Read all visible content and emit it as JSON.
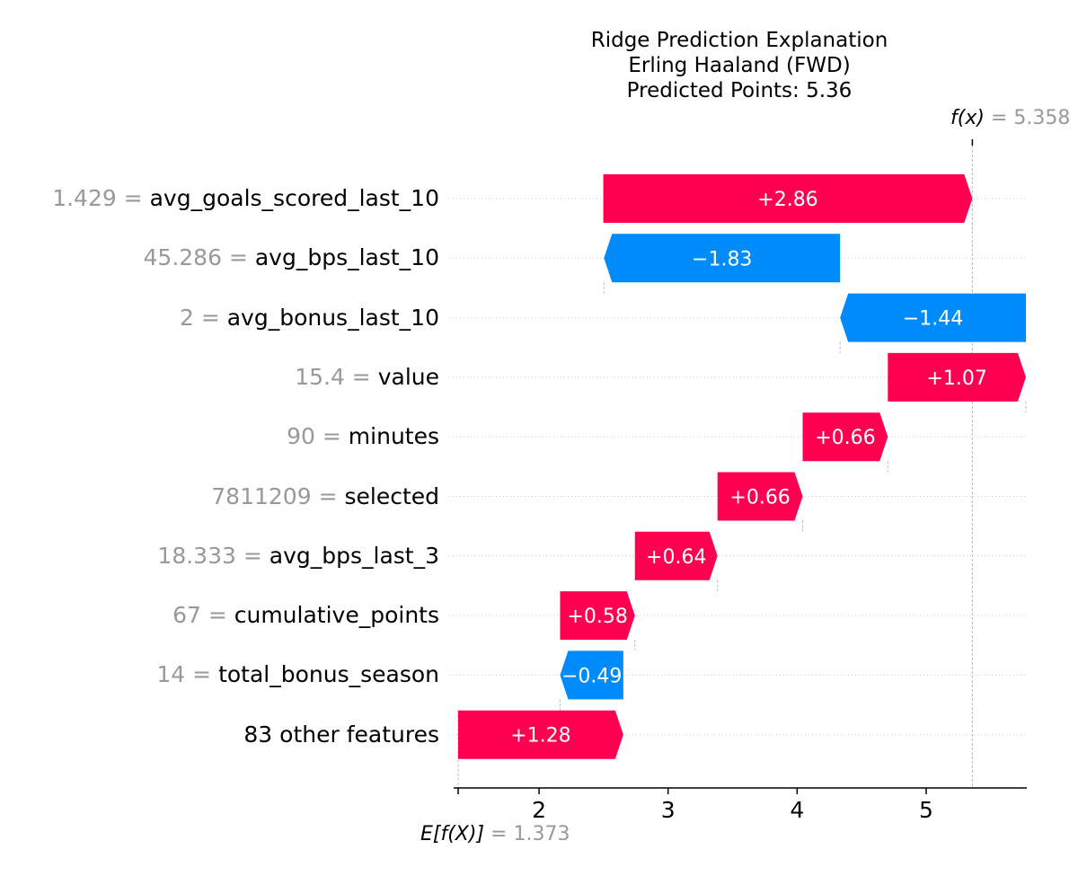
{
  "chart_data": {
    "type": "waterfall",
    "title_lines": [
      "Ridge Prediction Explanation",
      "Erling Haaland (FWD)",
      "Predicted Points: 5.36"
    ],
    "base_value": 1.373,
    "base_label_symbol": "E[f(X)]",
    "base_label_value": "= 1.373",
    "output_value": 5.358,
    "output_label_symbol": "f(x)",
    "output_label_value": "= 5.358",
    "xlim": [
      1.373,
      5.78
    ],
    "xticks": [
      2,
      3,
      4,
      5
    ],
    "xtick_labels": [
      "2",
      "3",
      "4",
      "5"
    ],
    "colors": {
      "positive": "#ff0051",
      "negative": "#008bfb",
      "grid": "#cccccc",
      "value_text": "#999999"
    },
    "features": [
      {
        "value": "1.429",
        "name": "avg_goals_scored_last_10",
        "contribution": 2.86,
        "label": "+2.86",
        "start": 2.498
      },
      {
        "value": "45.286",
        "name": "avg_bps_last_10",
        "contribution": -1.83,
        "label": "−1.83",
        "start": 4.333
      },
      {
        "value": "2",
        "name": "avg_bonus_last_10",
        "contribution": -1.44,
        "label": "−1.44",
        "start": 5.773
      },
      {
        "value": "15.4",
        "name": "value",
        "contribution": 1.07,
        "label": "+1.07",
        "start": 4.703
      },
      {
        "value": "90",
        "name": "minutes",
        "contribution": 0.66,
        "label": "+0.66",
        "start": 4.043
      },
      {
        "value": "7811209",
        "name": "selected",
        "contribution": 0.66,
        "label": "+0.66",
        "start": 3.383
      },
      {
        "value": "18.333",
        "name": "avg_bps_last_3",
        "contribution": 0.64,
        "label": "+0.64",
        "start": 2.743
      },
      {
        "value": "67",
        "name": "cumulative_points",
        "contribution": 0.58,
        "label": "+0.58",
        "start": 2.163
      },
      {
        "value": "14",
        "name": "total_bonus_season",
        "contribution": -0.49,
        "label": "−0.49",
        "start": 2.653
      },
      {
        "value": "",
        "name": "83 other features",
        "contribution": 1.28,
        "label": "+1.28",
        "start": 1.373
      }
    ]
  }
}
